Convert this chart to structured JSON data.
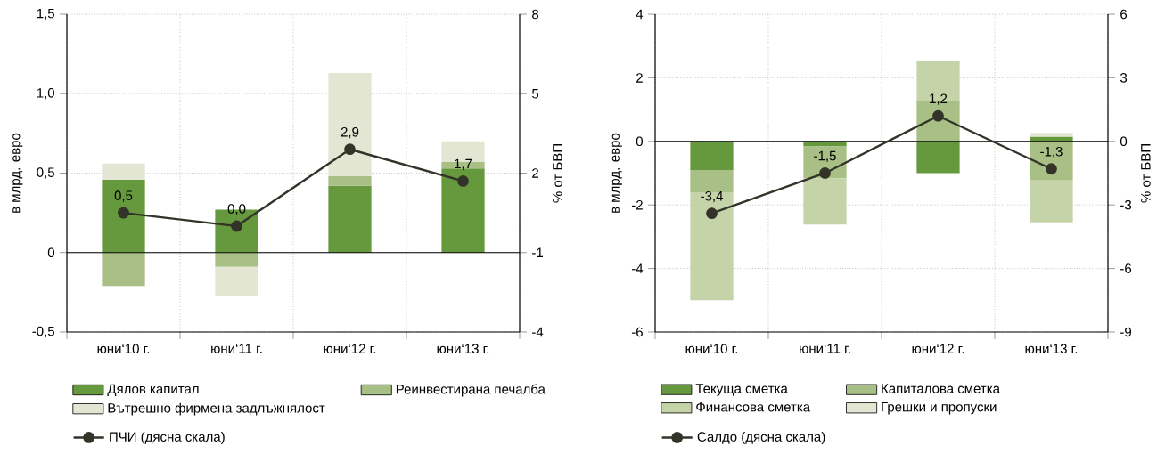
{
  "chart_data": [
    {
      "type": "bar",
      "stacked": true,
      "categories": [
        "юни‘10 г.",
        "юни‘11 г.",
        "юни‘12 г.",
        "юни‘13 г."
      ],
      "ylabel": "в млрд. евро",
      "y2label": "% от БВП",
      "ylim": [
        -0.5,
        1.5
      ],
      "yticks": [
        {
          "value": -0.5,
          "label": "-0,5"
        },
        0,
        {
          "value": 0.5,
          "label": "0,5"
        },
        {
          "value": 1.0,
          "label": "1,0"
        },
        {
          "value": 1.5,
          "label": "1,5"
        }
      ],
      "y2lim": [
        -4,
        8
      ],
      "y2ticks": [
        -4,
        -1,
        2,
        5,
        8
      ],
      "grid": true,
      "legend": "bottom",
      "ref_lines": [
        {
          "axis": "y",
          "value": 0,
          "color": "#000000"
        }
      ],
      "series": [
        {
          "name": "Дялов капитал",
          "color": "#66993d",
          "values": [
            0.46,
            0.27,
            0.42,
            0.53
          ]
        },
        {
          "name": "Реинвестирана печалба",
          "color": "#a8bf85",
          "values": [
            -0.21,
            -0.09,
            0.06,
            0.04
          ]
        },
        {
          "name": "Вътрешно фирмена задлъжнялост",
          "color": "#e3e6d3",
          "values": [
            0.1,
            -0.18,
            0.65,
            0.13
          ]
        },
        {
          "name": "ПЧИ (дясна скала)",
          "type": "line",
          "axis": "y2",
          "color": "#333329",
          "marker": "circle",
          "values": [
            0.5,
            0.0,
            2.9,
            1.7
          ],
          "value_labels": [
            "0,5",
            "0,0",
            "2,9",
            "1,7"
          ]
        }
      ]
    },
    {
      "type": "bar",
      "stacked": true,
      "categories": [
        "юни‘10 г.",
        "юни‘11 г.",
        "юни‘12 г.",
        "юни‘13 г."
      ],
      "ylabel": "в млрд. евро",
      "y2label": "% от БВП",
      "ylim": [
        -6,
        4
      ],
      "yticks": [
        -6,
        -4,
        -2,
        0,
        2,
        4
      ],
      "y2lim": [
        -9,
        6
      ],
      "y2ticks": [
        -9,
        -6,
        -3,
        0,
        3,
        6
      ],
      "grid": true,
      "legend": "bottom",
      "ref_lines": [
        {
          "axis": "y",
          "value": 0,
          "color": "#000000"
        }
      ],
      "series": [
        {
          "name": "Текуща сметка",
          "color": "#66993d",
          "values": [
            -0.9,
            -0.16,
            -1.0,
            0.15
          ]
        },
        {
          "name": "Капиталова сметка",
          "color": "#a8bf85",
          "values": [
            -0.7,
            -1.0,
            1.28,
            -1.23
          ]
        },
        {
          "name": "Финансова сметка",
          "color": "#c5d4a8",
          "values": [
            -3.4,
            -1.46,
            1.24,
            -1.32
          ]
        },
        {
          "name": "Грешки и пропуски",
          "color": "#e3e6d3",
          "values": [
            null,
            null,
            null,
            0.12
          ]
        },
        {
          "name": "Салдо (дясна скала)",
          "type": "line",
          "axis": "y2",
          "color": "#333329",
          "marker": "circle",
          "values": [
            -3.4,
            -1.5,
            1.2,
            -1.3
          ],
          "value_labels": [
            "-3,4",
            "-1,5",
            "1,2",
            "-1,3"
          ]
        }
      ]
    }
  ]
}
